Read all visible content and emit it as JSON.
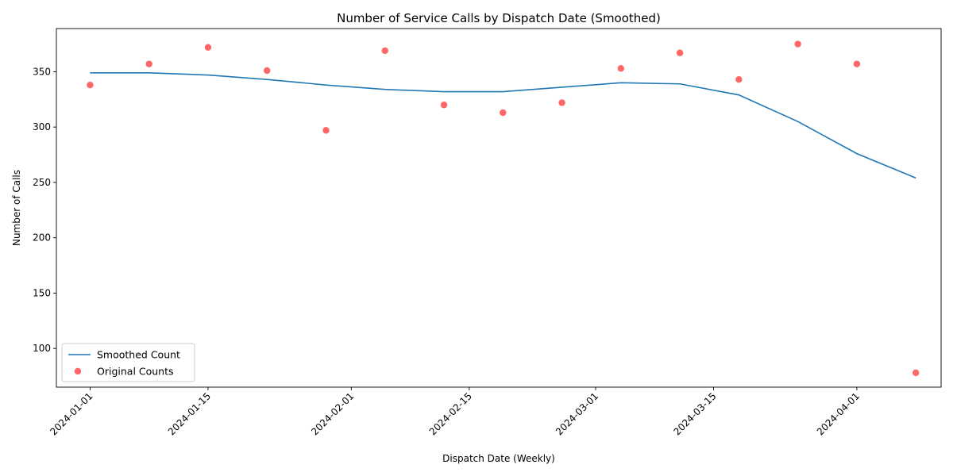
{
  "chart_data": {
    "type": "line",
    "title": "Number of Service Calls by Dispatch Date (Smoothed)",
    "xlabel": "Dispatch Date (Weekly)",
    "ylabel": "Number of Calls",
    "x": [
      "2024-01-01",
      "2024-01-08",
      "2024-01-15",
      "2024-01-22",
      "2024-01-29",
      "2024-02-05",
      "2024-02-12",
      "2024-02-19",
      "2024-02-26",
      "2024-03-04",
      "2024-03-11",
      "2024-03-18",
      "2024-03-25",
      "2024-04-01",
      "2024-04-08"
    ],
    "series": [
      {
        "name": "Smoothed Count",
        "kind": "line",
        "color": "#1f77b4",
        "values": [
          349,
          349,
          347,
          343,
          338,
          334,
          332,
          332,
          336,
          340,
          339,
          329,
          305,
          276,
          254
        ]
      },
      {
        "name": "Original Counts",
        "kind": "scatter",
        "color": "#ff0000",
        "values": [
          338,
          357,
          372,
          351,
          297,
          369,
          320,
          313,
          322,
          353,
          367,
          343,
          375,
          357,
          78
        ]
      }
    ],
    "xlim": [
      "2023-12-28",
      "2024-04-11"
    ],
    "ylim": [
      65,
      389
    ],
    "xticks": [
      "2024-01-01",
      "2024-01-15",
      "2024-02-01",
      "2024-02-15",
      "2024-03-01",
      "2024-03-15",
      "2024-04-01"
    ],
    "yticks": [
      100,
      150,
      200,
      250,
      300,
      350
    ],
    "grid": false,
    "legend": "lower-left"
  }
}
